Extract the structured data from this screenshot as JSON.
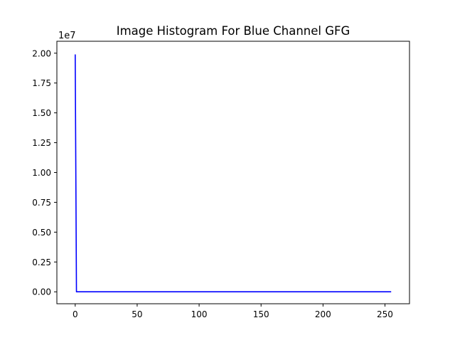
{
  "chart_data": {
    "type": "line",
    "title": "Image Histogram For Blue Channel GFG",
    "xlabel": "",
    "ylabel": "",
    "y_offset_label": "1e7",
    "y_scale": 10000000,
    "xlim": [
      -14.8,
      269.8
    ],
    "ylim": [
      -0.1,
      2.1
    ],
    "xticks": [
      0,
      50,
      100,
      150,
      200,
      250
    ],
    "yticks": [
      "0.00",
      "0.25",
      "0.50",
      "0.75",
      "1.00",
      "1.25",
      "1.50",
      "1.75",
      "2.00"
    ],
    "ytick_values": [
      0,
      0.25,
      0.5,
      0.75,
      1.0,
      1.25,
      1.5,
      1.75,
      2.0
    ],
    "grid": false,
    "series": [
      {
        "color": "#0000ff",
        "x": [
          0,
          1,
          2,
          255
        ],
        "y": [
          1.99,
          0.0,
          0.0,
          0.0
        ]
      }
    ]
  }
}
